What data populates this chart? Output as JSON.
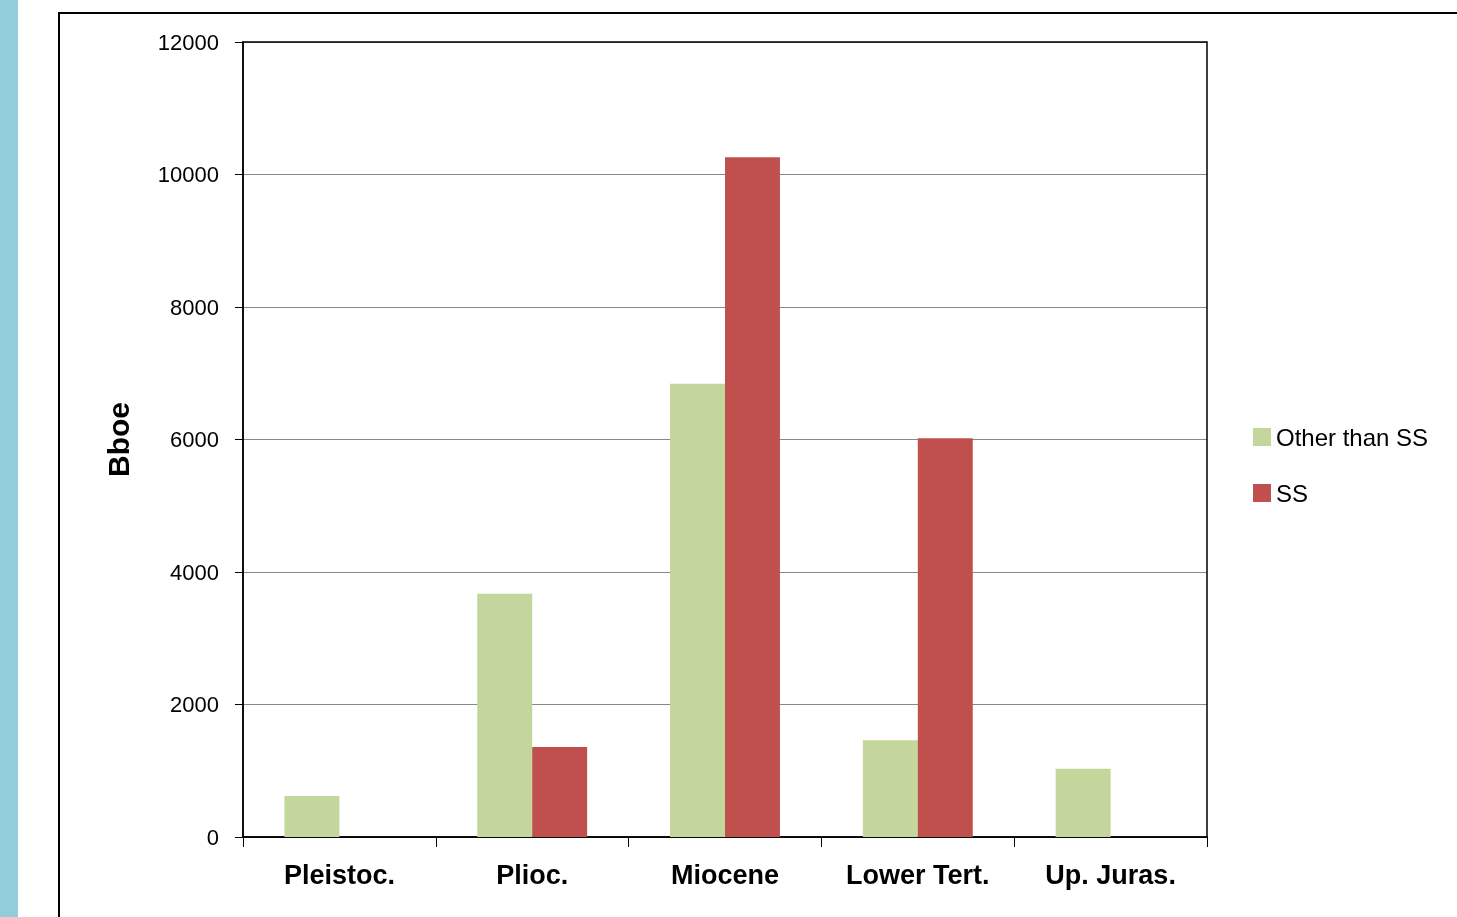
{
  "chart_data": {
    "type": "bar",
    "ylabel": "Bboe",
    "categories": [
      "Pleistoc.",
      "Plioc.",
      "Miocene",
      "Lower Tert.",
      "Up. Juras."
    ],
    "series": [
      {
        "name": "Other than SS",
        "color": "#c3d69b",
        "values": [
          620,
          3670,
          6840,
          1460,
          1030
        ]
      },
      {
        "name": "SS",
        "color": "#c0504d",
        "values": [
          null,
          1360,
          10260,
          6020,
          null
        ]
      }
    ],
    "ylim": [
      0,
      12000
    ],
    "yticks": [
      0,
      2000,
      4000,
      6000,
      8000,
      10000,
      12000
    ],
    "grid": "y",
    "legend": "right"
  }
}
